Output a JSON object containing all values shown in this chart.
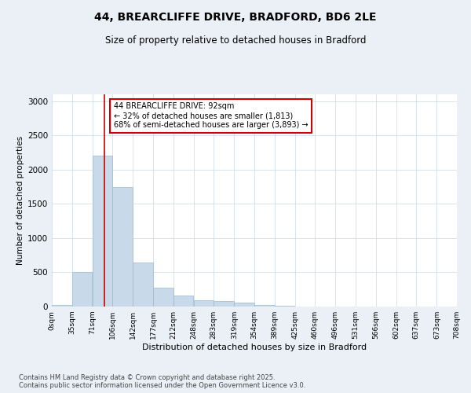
{
  "title_line1": "44, BREARCLIFFE DRIVE, BRADFORD, BD6 2LE",
  "title_line2": "Size of property relative to detached houses in Bradford",
  "xlabel": "Distribution of detached houses by size in Bradford",
  "ylabel": "Number of detached properties",
  "bin_edges": [
    0,
    35,
    71,
    106,
    142,
    177,
    212,
    248,
    283,
    319,
    354,
    389,
    425,
    460,
    496,
    531,
    566,
    602,
    637,
    673,
    708
  ],
  "bin_labels": [
    "0sqm",
    "35sqm",
    "71sqm",
    "106sqm",
    "142sqm",
    "177sqm",
    "212sqm",
    "248sqm",
    "283sqm",
    "319sqm",
    "354sqm",
    "389sqm",
    "425sqm",
    "460sqm",
    "496sqm",
    "531sqm",
    "566sqm",
    "602sqm",
    "637sqm",
    "673sqm",
    "708sqm"
  ],
  "bar_heights": [
    20,
    510,
    2200,
    1750,
    640,
    270,
    160,
    90,
    75,
    55,
    20,
    12,
    5,
    2,
    1,
    0,
    0,
    0,
    0,
    1
  ],
  "bar_color": "#c8daea",
  "bar_edge_color": "#9ab8cc",
  "property_size": 92,
  "red_line_color": "#cc0000",
  "annotation_text": "44 BREARCLIFFE DRIVE: 92sqm\n← 32% of detached houses are smaller (1,813)\n68% of semi-detached houses are larger (3,893) →",
  "annotation_box_color": "#cc0000",
  "ylim": [
    0,
    3100
  ],
  "yticks": [
    0,
    500,
    1000,
    1500,
    2000,
    2500,
    3000
  ],
  "footer_line1": "Contains HM Land Registry data © Crown copyright and database right 2025.",
  "footer_line2": "Contains public sector information licensed under the Open Government Licence v3.0.",
  "bg_color": "#eaf0f6",
  "plot_bg_color": "#ffffff",
  "grid_color": "#c8d8e8"
}
